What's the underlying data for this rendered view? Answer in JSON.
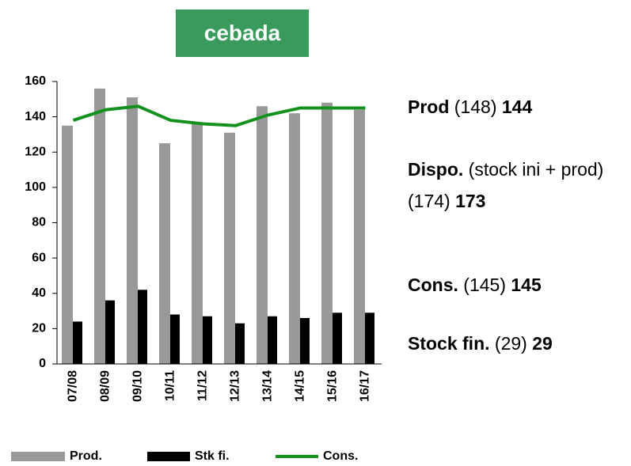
{
  "chart_data": {
    "type": "bar_line",
    "title": "cebada",
    "categories": [
      "07/08",
      "08/09",
      "09/10",
      "10/11",
      "11/12",
      "12/13",
      "13/14",
      "14/15",
      "15/16",
      "16/17"
    ],
    "series": [
      {
        "name": "Prod.",
        "kind": "bar",
        "color": "#999999",
        "values": [
          135,
          156,
          151,
          125,
          136,
          131,
          146,
          142,
          148,
          144
        ]
      },
      {
        "name": "Stk fi.",
        "kind": "bar",
        "color": "#000000",
        "values": [
          24,
          36,
          42,
          28,
          27,
          23,
          27,
          26,
          29,
          29
        ]
      },
      {
        "name": "Cons.",
        "kind": "line",
        "color": "#13911d",
        "values": [
          138,
          144,
          146,
          138,
          136,
          135,
          141,
          145,
          145,
          145
        ]
      }
    ],
    "ylim": [
      0,
      160
    ],
    "yticks": [
      0,
      20,
      40,
      60,
      80,
      100,
      120,
      140,
      160
    ],
    "grid": false,
    "legend": "bottom",
    "annotations": [
      {
        "bold": "Prod",
        "text": "(148)",
        "value": "144"
      },
      {
        "bold": "Dispo.",
        "text": "(stock ini + prod) (174)",
        "value": "173"
      },
      {
        "bold": "Cons.",
        "text": "(145)",
        "value": "145"
      },
      {
        "bold": "Stock fin.",
        "text": "(29)",
        "value": "29"
      }
    ]
  }
}
